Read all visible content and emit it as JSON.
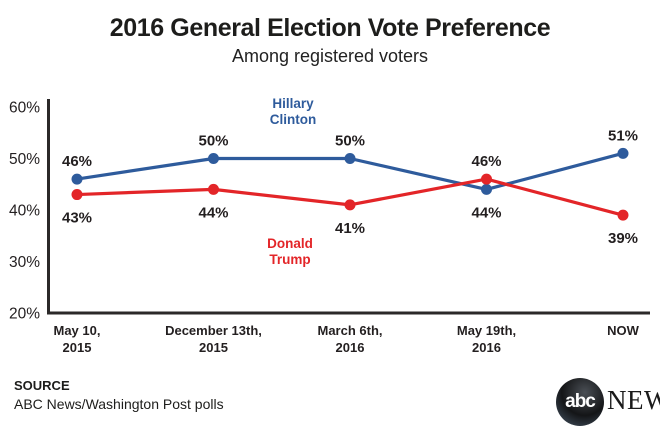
{
  "chart_data": {
    "type": "line",
    "title": "2016 General Election Vote Preference",
    "subtitle": "Among registered voters",
    "grid": false,
    "legend_position": "inline-labels",
    "ylim": [
      20,
      60
    ],
    "y_ticks": [
      {
        "label": "60%",
        "value": 60
      },
      {
        "label": "50%",
        "value": 50
      },
      {
        "label": "40%",
        "value": 40
      },
      {
        "label": "30%",
        "value": 30
      },
      {
        "label": "20%",
        "value": 20
      }
    ],
    "x_categories": [
      [
        "May 10,",
        "2015"
      ],
      [
        "December 13th,",
        "2015"
      ],
      [
        "March 6th,",
        "2016"
      ],
      [
        "May 19th,",
        "2016"
      ],
      [
        "NOW"
      ]
    ],
    "series": [
      {
        "name": "Hillary Clinton",
        "name_lines": [
          "Hillary",
          "Clinton"
        ],
        "color": "#2e5b9c",
        "values": [
          46,
          50,
          50,
          44,
          51
        ],
        "value_labels": [
          "46%",
          "50%",
          "50%",
          "44%",
          "51%"
        ],
        "label_positions": [
          "above",
          "above",
          "above",
          "below",
          "above"
        ]
      },
      {
        "name": "Donald Trump",
        "name_lines": [
          "Donald",
          "Trump"
        ],
        "color": "#e32528",
        "values": [
          43,
          44,
          41,
          46,
          39
        ],
        "value_labels": [
          "43%",
          "44%",
          "41%",
          "46%",
          "39%"
        ],
        "label_positions": [
          "below",
          "below",
          "below",
          "above",
          "below"
        ]
      }
    ],
    "axis_color": "#2b2929",
    "label_color": "#231f20"
  },
  "footer": {
    "source_label": "SOURCE",
    "source_text": "ABC News/Washington Post polls",
    "logo": {
      "abc": "abc",
      "news": "NEWS"
    }
  }
}
